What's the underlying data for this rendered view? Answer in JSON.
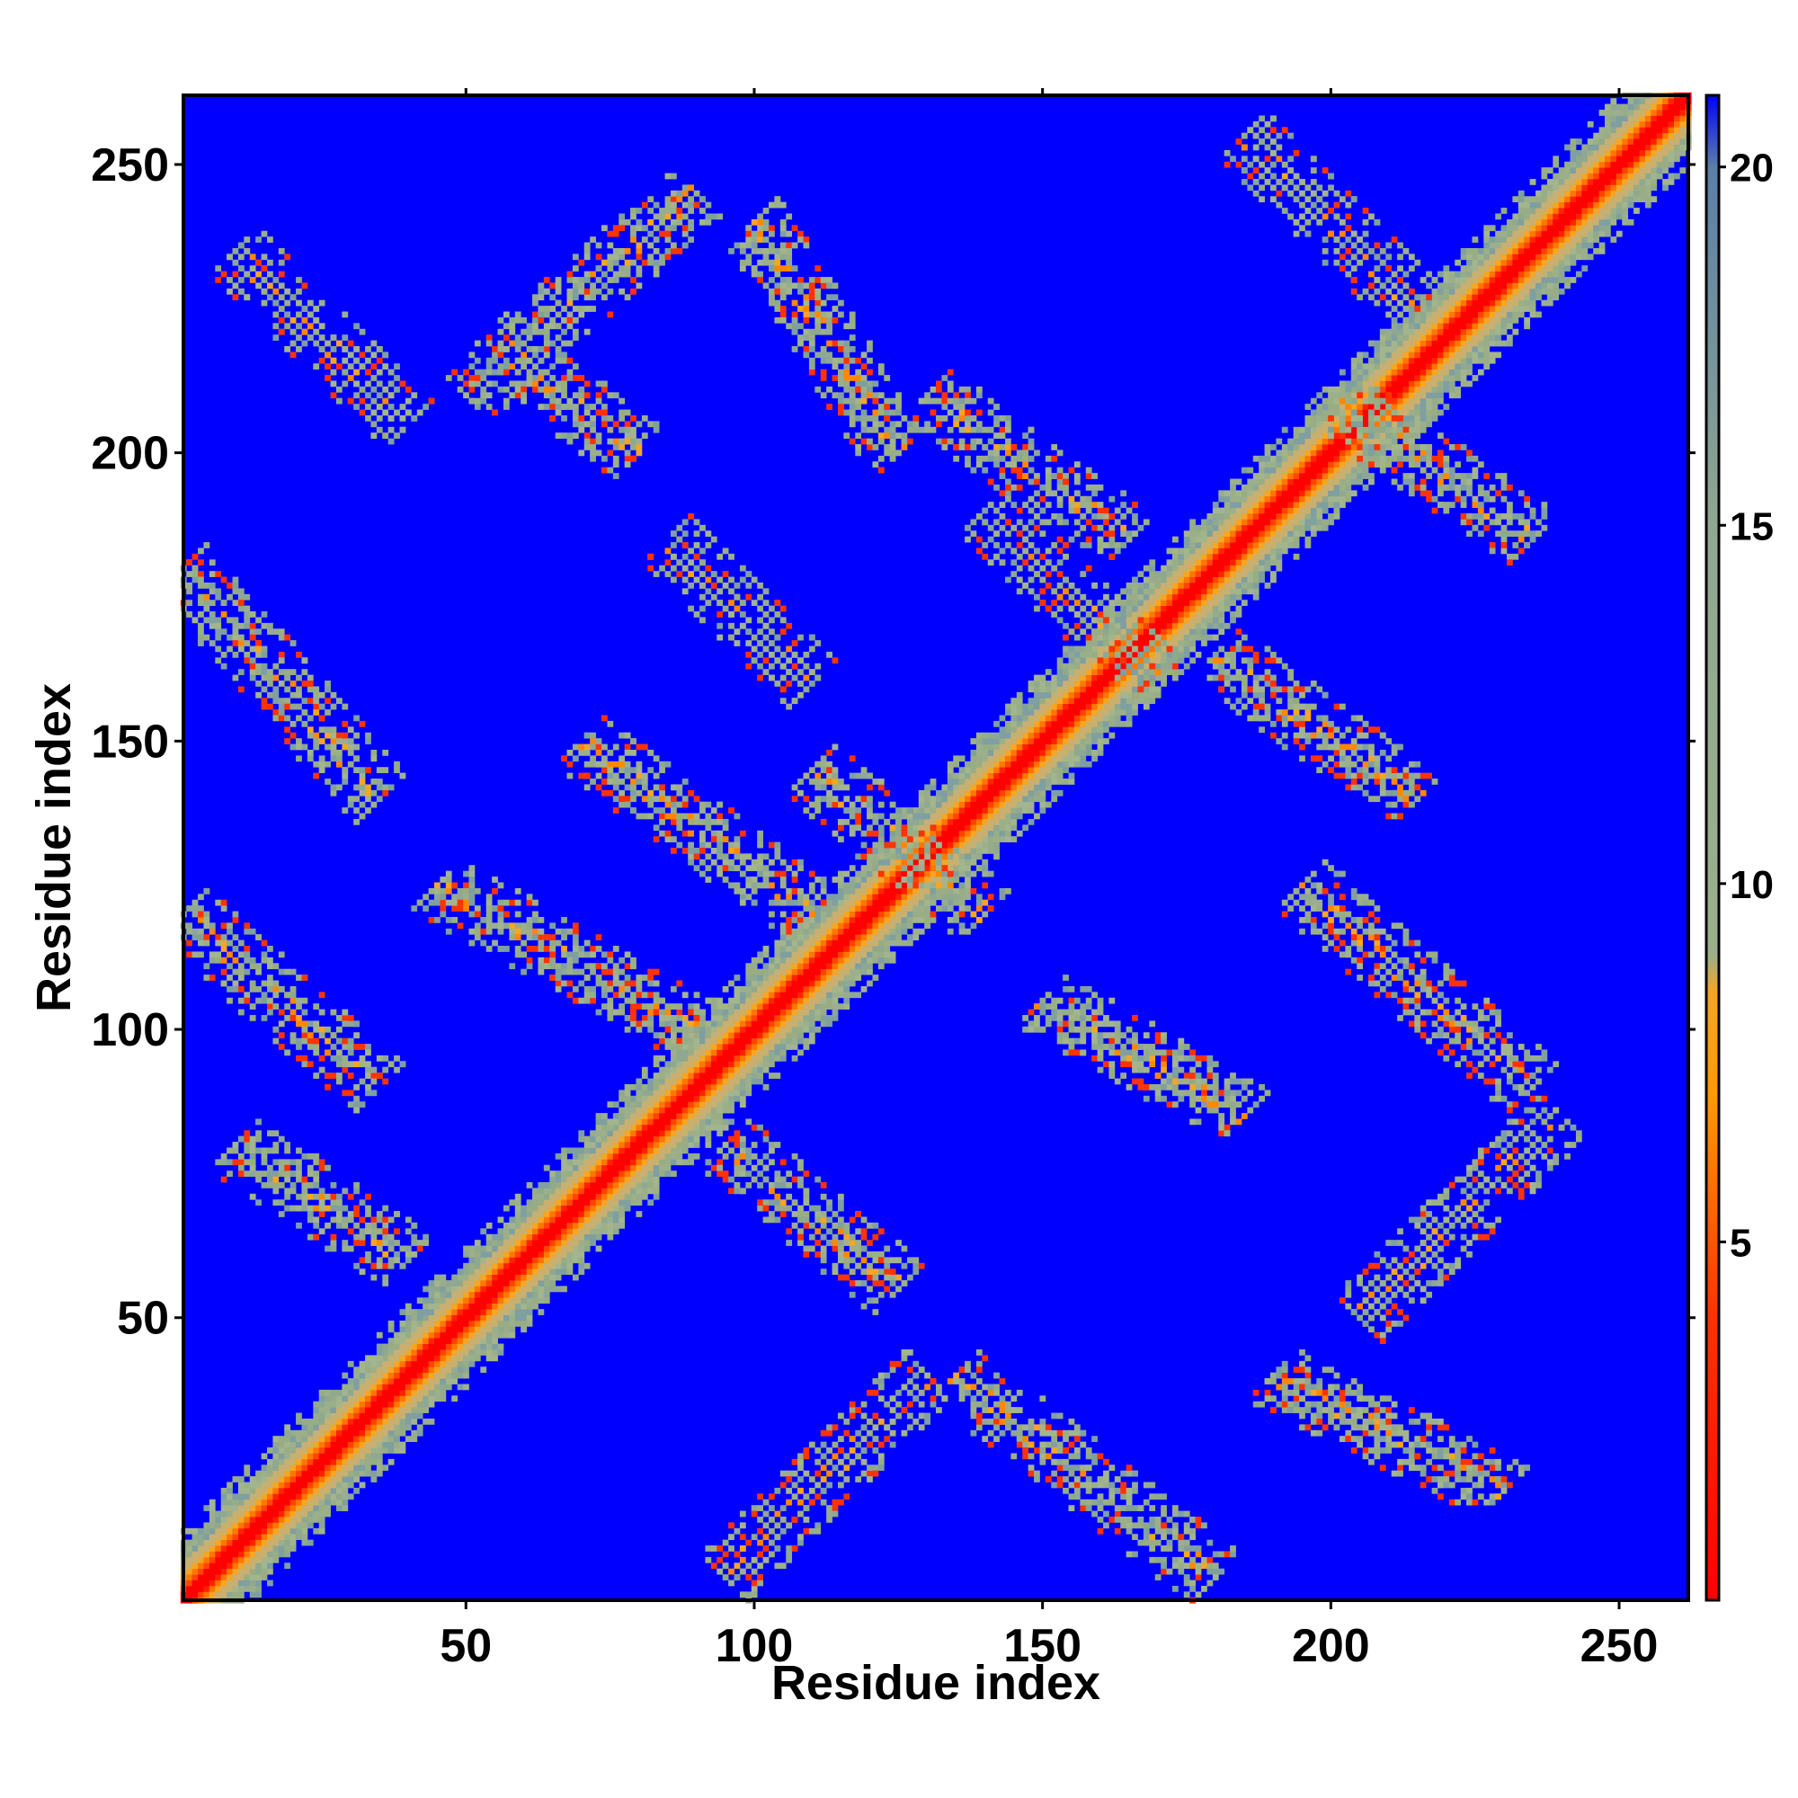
{
  "chart_data": {
    "type": "heatmap",
    "title": "",
    "xlabel": "Residue index",
    "ylabel": "Residue index",
    "n_residues": 262,
    "xlim": [
      1,
      262
    ],
    "ylim": [
      1,
      262
    ],
    "x_ticks": [
      50,
      100,
      150,
      200,
      250
    ],
    "y_ticks": [
      50,
      100,
      150,
      200,
      250
    ],
    "colorbar": {
      "range": [
        0,
        21
      ],
      "ticks": [
        5,
        10,
        15,
        20
      ],
      "stops": [
        {
          "value": 0,
          "color": "#ff0000"
        },
        {
          "value": 4,
          "color": "#ff3300"
        },
        {
          "value": 7,
          "color": "#ff9900"
        },
        {
          "value": 8.5,
          "color": "#f5a623"
        },
        {
          "value": 9,
          "color": "#9bb08a"
        },
        {
          "value": 15,
          "color": "#8fa890"
        },
        {
          "value": 20,
          "color": "#5a7fa8"
        },
        {
          "value": 21,
          "color": "#0000ff"
        }
      ]
    },
    "background_color": "#0000ff",
    "diagonal": "values rise from about 1 on the diagonal to above 20 within about 10 residues",
    "contact_bands": [
      {
        "x": [
          1,
          35
        ],
        "y": [
          140,
          180
        ],
        "orient": "anti"
      },
      {
        "x": [
          1,
          35
        ],
        "y": [
          90,
          120
        ],
        "orient": "anti"
      },
      {
        "x": [
          10,
          40
        ],
        "y": [
          205,
          235
        ],
        "orient": "anti"
      },
      {
        "x": [
          10,
          40
        ],
        "y": [
          60,
          80
        ],
        "orient": "anti"
      },
      {
        "x": [
          45,
          90
        ],
        "y": [
          100,
          125
        ],
        "orient": "anti"
      },
      {
        "x": [
          50,
          90
        ],
        "y": [
          210,
          245
        ],
        "orient": "diag"
      },
      {
        "x": [
          60,
          80
        ],
        "y": [
          200,
          215
        ],
        "orient": "anti"
      },
      {
        "x": [
          70,
          110
        ],
        "y": [
          120,
          150
        ],
        "orient": "anti"
      },
      {
        "x": [
          85,
          110
        ],
        "y": [
          160,
          185
        ],
        "orient": "anti"
      },
      {
        "x": [
          95,
          125
        ],
        "y": [
          55,
          80
        ],
        "orient": "anti"
      },
      {
        "x": [
          100,
          125
        ],
        "y": [
          200,
          240
        ],
        "orient": "anti"
      },
      {
        "x": [
          110,
          140
        ],
        "y": [
          120,
          145
        ],
        "orient": "anti"
      },
      {
        "x": [
          95,
          130
        ],
        "y": [
          5,
          40
        ],
        "orient": "diag"
      },
      {
        "x": [
          135,
          180
        ],
        "y": [
          5,
          40
        ],
        "orient": "anti"
      },
      {
        "x": [
          130,
          165
        ],
        "y": [
          185,
          210
        ],
        "orient": "anti"
      },
      {
        "x": [
          140,
          170
        ],
        "y": [
          160,
          190
        ],
        "orient": "anti"
      },
      {
        "x": [
          150,
          185
        ],
        "y": [
          85,
          105
        ],
        "orient": "anti"
      },
      {
        "x": [
          180,
          215
        ],
        "y": [
          140,
          165
        ],
        "orient": "anti"
      },
      {
        "x": [
          185,
          215
        ],
        "y": [
          225,
          255
        ],
        "orient": "anti"
      },
      {
        "x": [
          200,
          235
        ],
        "y": [
          185,
          210
        ],
        "orient": "anti"
      },
      {
        "x": [
          205,
          240
        ],
        "y": [
          50,
          85
        ],
        "orient": "diag"
      },
      {
        "x": [
          190,
          230
        ],
        "y": [
          20,
          40
        ],
        "orient": "anti"
      },
      {
        "x": [
          195,
          235
        ],
        "y": [
          90,
          125
        ],
        "orient": "anti"
      }
    ]
  }
}
